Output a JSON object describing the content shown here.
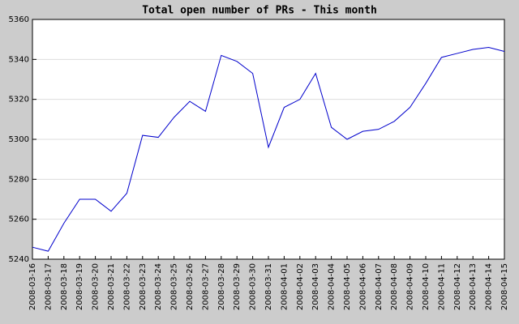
{
  "chart_data": {
    "type": "line",
    "title": "Total open number of PRs - This month",
    "x": [
      "2008-03-16",
      "2008-03-17",
      "2008-03-18",
      "2008-03-19",
      "2008-03-20",
      "2008-03-21",
      "2008-03-22",
      "2008-03-23",
      "2008-03-24",
      "2008-03-25",
      "2008-03-26",
      "2008-03-27",
      "2008-03-28",
      "2008-03-29",
      "2008-03-30",
      "2008-03-31",
      "2008-04-01",
      "2008-04-02",
      "2008-04-03",
      "2008-04-04",
      "2008-04-05",
      "2008-04-06",
      "2008-04-07",
      "2008-04-08",
      "2008-04-09",
      "2008-04-10",
      "2008-04-11",
      "2008-04-12",
      "2008-04-13",
      "2008-04-14",
      "2008-04-15"
    ],
    "values": [
      5246,
      5244,
      5258,
      5270,
      5270,
      5264,
      5273,
      5302,
      5301,
      5311,
      5319,
      5314,
      5342,
      5339,
      5333,
      5296,
      5316,
      5320,
      5333,
      5306,
      5300,
      5304,
      5305,
      5309,
      5316,
      5328,
      5341,
      5343,
      5345,
      5346,
      5344
    ],
    "color": "#0000cc",
    "ylim": [
      5240,
      5360
    ],
    "yticks": [
      5240,
      5260,
      5280,
      5300,
      5320,
      5340,
      5360
    ],
    "grid": true
  }
}
